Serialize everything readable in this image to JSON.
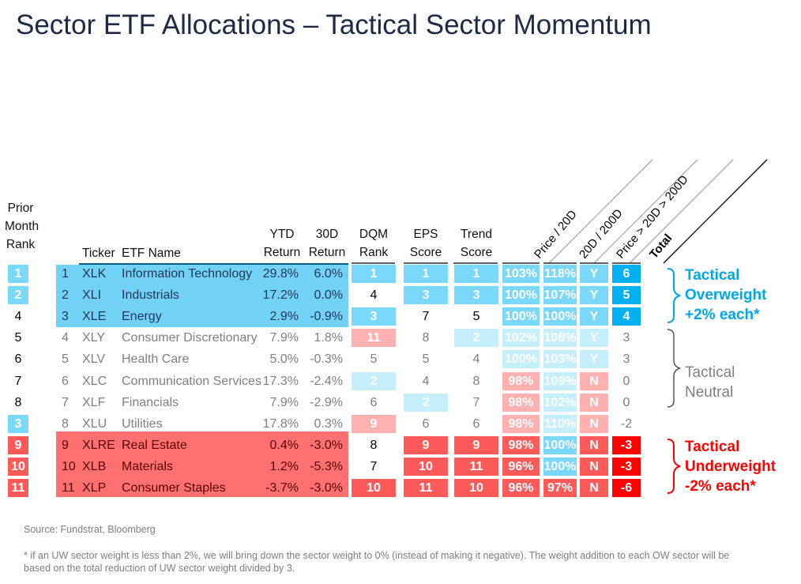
{
  "title": "Sector ETF Allocations – Tactical Sector Momentum",
  "headers": {
    "prior_rank": [
      "Prior",
      "Month",
      "Rank"
    ],
    "ticker": "Ticker",
    "etf_name": "ETF Name",
    "ytd": [
      "YTD",
      "Return"
    ],
    "d30": [
      "30D",
      "Return"
    ],
    "dqm": [
      "DQM",
      "Rank"
    ],
    "eps": [
      "EPS",
      "Score"
    ],
    "trend": [
      "Trend",
      "Score"
    ],
    "price_20d": "Price / 20D",
    "d20_200d": "20D / 200D",
    "price_gt": "Price > 20D > 200D",
    "total": "Total"
  },
  "colors": {
    "blue": "#7ad8fb",
    "lightblue": "#c6effd",
    "pink": "#ffb0b0",
    "red": "#ff5a5a",
    "darkblue": "#00b0f0",
    "brightred": "#ff0000",
    "block_blue": "#72d2f6",
    "block_red": "#ff7070",
    "ow_label": "#00a6e8",
    "uw_label": "#ff0000",
    "neutral_label": "#808080"
  },
  "rows": [
    {
      "group": "ow",
      "prior": [
        "1",
        "blue"
      ],
      "num": "1",
      "ticker": "XLK",
      "name": "Information Technology",
      "ytd": "29.8%",
      "d30": "6.0%",
      "dqm": [
        "1",
        "blue"
      ],
      "eps": [
        "1",
        "blue"
      ],
      "trend": [
        "1",
        "blue"
      ],
      "p20": [
        "103%",
        "blue"
      ],
      "d200": [
        "118%",
        "blue"
      ],
      "yn": [
        "Y",
        "blue"
      ],
      "total": [
        "6",
        "darkblue"
      ]
    },
    {
      "group": "ow",
      "prior": [
        "2",
        "blue"
      ],
      "num": "2",
      "ticker": "XLI",
      "name": "Industrials",
      "ytd": "17.2%",
      "d30": "0.0%",
      "dqm": [
        "4",
        ""
      ],
      "eps": [
        "3",
        "blue"
      ],
      "trend": [
        "3",
        "blue"
      ],
      "p20": [
        "100%",
        "blue"
      ],
      "d200": [
        "107%",
        "blue"
      ],
      "yn": [
        "Y",
        "blue"
      ],
      "total": [
        "5",
        "darkblue"
      ]
    },
    {
      "group": "ow",
      "prior": [
        "4",
        ""
      ],
      "num": "3",
      "ticker": "XLE",
      "name": "Energy",
      "ytd": "2.9%",
      "d30": "-0.9%",
      "dqm": [
        "3",
        "blue"
      ],
      "eps": [
        "7",
        ""
      ],
      "trend": [
        "5",
        ""
      ],
      "p20": [
        "100%",
        "blue"
      ],
      "d200": [
        "100%",
        "blue"
      ],
      "yn": [
        "Y",
        "blue"
      ],
      "total": [
        "4",
        "darkblue"
      ]
    },
    {
      "group": "n",
      "prior": [
        "5",
        ""
      ],
      "num": "4",
      "ticker": "XLY",
      "name": "Consumer Discretionary",
      "ytd": "7.9%",
      "d30": "1.8%",
      "dqm": [
        "11",
        "pink"
      ],
      "eps": [
        "8",
        ""
      ],
      "trend": [
        "2",
        "lightblue"
      ],
      "p20": [
        "102%",
        "lightblue"
      ],
      "d200": [
        "108%",
        "lightblue"
      ],
      "yn": [
        "Y",
        "lightblue"
      ],
      "total": [
        "3",
        ""
      ]
    },
    {
      "group": "n",
      "prior": [
        "6",
        ""
      ],
      "num": "5",
      "ticker": "XLV",
      "name": "Health Care",
      "ytd": "5.0%",
      "d30": "-0.3%",
      "dqm": [
        "5",
        ""
      ],
      "eps": [
        "5",
        ""
      ],
      "trend": [
        "4",
        ""
      ],
      "p20": [
        "100%",
        "lightblue"
      ],
      "d200": [
        "103%",
        "lightblue"
      ],
      "yn": [
        "Y",
        "lightblue"
      ],
      "total": [
        "3",
        ""
      ]
    },
    {
      "group": "n",
      "prior": [
        "7",
        ""
      ],
      "num": "6",
      "ticker": "XLC",
      "name": "Communication Services",
      "ytd": "17.3%",
      "d30": "-2.4%",
      "dqm": [
        "2",
        "lightblue"
      ],
      "eps": [
        "4",
        ""
      ],
      "trend": [
        "8",
        ""
      ],
      "p20": [
        "98%",
        "pink"
      ],
      "d200": [
        "109%",
        "lightblue"
      ],
      "yn": [
        "N",
        "pink"
      ],
      "total": [
        "0",
        ""
      ]
    },
    {
      "group": "n",
      "prior": [
        "8",
        ""
      ],
      "num": "7",
      "ticker": "XLF",
      "name": "Financials",
      "ytd": "7.9%",
      "d30": "-2.9%",
      "dqm": [
        "6",
        ""
      ],
      "eps": [
        "2",
        "lightblue"
      ],
      "trend": [
        "7",
        ""
      ],
      "p20": [
        "98%",
        "pink"
      ],
      "d200": [
        "102%",
        "lightblue"
      ],
      "yn": [
        "N",
        "pink"
      ],
      "total": [
        "0",
        ""
      ]
    },
    {
      "group": "n",
      "prior": [
        "3",
        "blue"
      ],
      "num": "8",
      "ticker": "XLU",
      "name": "Utilities",
      "ytd": "17.8%",
      "d30": "0.3%",
      "dqm": [
        "9",
        "pink"
      ],
      "eps": [
        "6",
        ""
      ],
      "trend": [
        "6",
        ""
      ],
      "p20": [
        "98%",
        "pink"
      ],
      "d200": [
        "110%",
        "lightblue"
      ],
      "yn": [
        "N",
        "pink"
      ],
      "total": [
        "-2",
        ""
      ]
    },
    {
      "group": "uw",
      "prior": [
        "9",
        "red"
      ],
      "num": "9",
      "ticker": "XLRE",
      "name": "Real Estate",
      "ytd": "0.4%",
      "d30": "-3.0%",
      "dqm": [
        "8",
        ""
      ],
      "eps": [
        "9",
        "red"
      ],
      "trend": [
        "9",
        "red"
      ],
      "p20": [
        "98%",
        "red"
      ],
      "d200": [
        "100%",
        "blue"
      ],
      "yn": [
        "N",
        "red"
      ],
      "total": [
        "-3",
        "brightred"
      ]
    },
    {
      "group": "uw",
      "prior": [
        "10",
        "red"
      ],
      "num": "10",
      "ticker": "XLB",
      "name": "Materials",
      "ytd": "1.2%",
      "d30": "-5.3%",
      "dqm": [
        "7",
        ""
      ],
      "eps": [
        "10",
        "red"
      ],
      "trend": [
        "11",
        "red"
      ],
      "p20": [
        "96%",
        "red"
      ],
      "d200": [
        "100%",
        "blue"
      ],
      "yn": [
        "N",
        "red"
      ],
      "total": [
        "-3",
        "brightred"
      ]
    },
    {
      "group": "uw",
      "prior": [
        "11",
        "red"
      ],
      "num": "11",
      "ticker": "XLP",
      "name": "Consumer Staples",
      "ytd": "-3.7%",
      "d30": "-3.0%",
      "dqm": [
        "10",
        "red"
      ],
      "eps": [
        "11",
        "red"
      ],
      "trend": [
        "10",
        "red"
      ],
      "p20": [
        "96%",
        "red"
      ],
      "d200": [
        "97%",
        "red"
      ],
      "yn": [
        "N",
        "red"
      ],
      "total": [
        "-6",
        "brightred"
      ]
    }
  ],
  "labels": {
    "overweight": [
      "Tactical",
      "Overweight",
      "+2% each*"
    ],
    "neutral": [
      "Tactical",
      "Neutral"
    ],
    "underweight": [
      "Tactical",
      "Underweight",
      "-2% each*"
    ]
  },
  "source": "Source: Fundstrat, Bloomberg",
  "footnote": "* if an UW sector weight is less than 2%, we will bring down the sector weight to 0% (instead of making it negative). The weight addition to each OW sector will be based on the total reduction of UW sector weight divided by 3."
}
